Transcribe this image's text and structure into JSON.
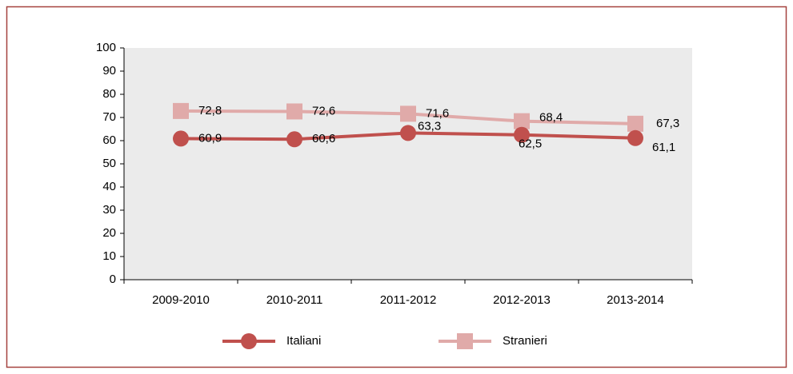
{
  "chart_data": {
    "type": "line",
    "categories": [
      "2009-2010",
      "2010-2011",
      "2011-2012",
      "2012-2013",
      "2013-2014"
    ],
    "series": [
      {
        "name": "Italiani",
        "color": "#c0504d",
        "marker": "circle",
        "values": [
          60.9,
          60.6,
          63.3,
          62.5,
          61.1
        ],
        "value_labels": [
          "60,9",
          "60,6",
          "63,3",
          "62,5",
          "61,1"
        ]
      },
      {
        "name": "Stranieri",
        "color": "#e0aaa9",
        "marker": "square",
        "values": [
          72.8,
          72.6,
          71.6,
          68.4,
          67.3
        ],
        "value_labels": [
          "72,8",
          "72,6",
          "71,6",
          "68,4",
          "67,3"
        ]
      }
    ],
    "ylim": [
      0,
      100
    ],
    "yticks": [
      0,
      10,
      20,
      30,
      40,
      50,
      60,
      70,
      80,
      90,
      100
    ],
    "grid": false,
    "legend": "bottom"
  }
}
